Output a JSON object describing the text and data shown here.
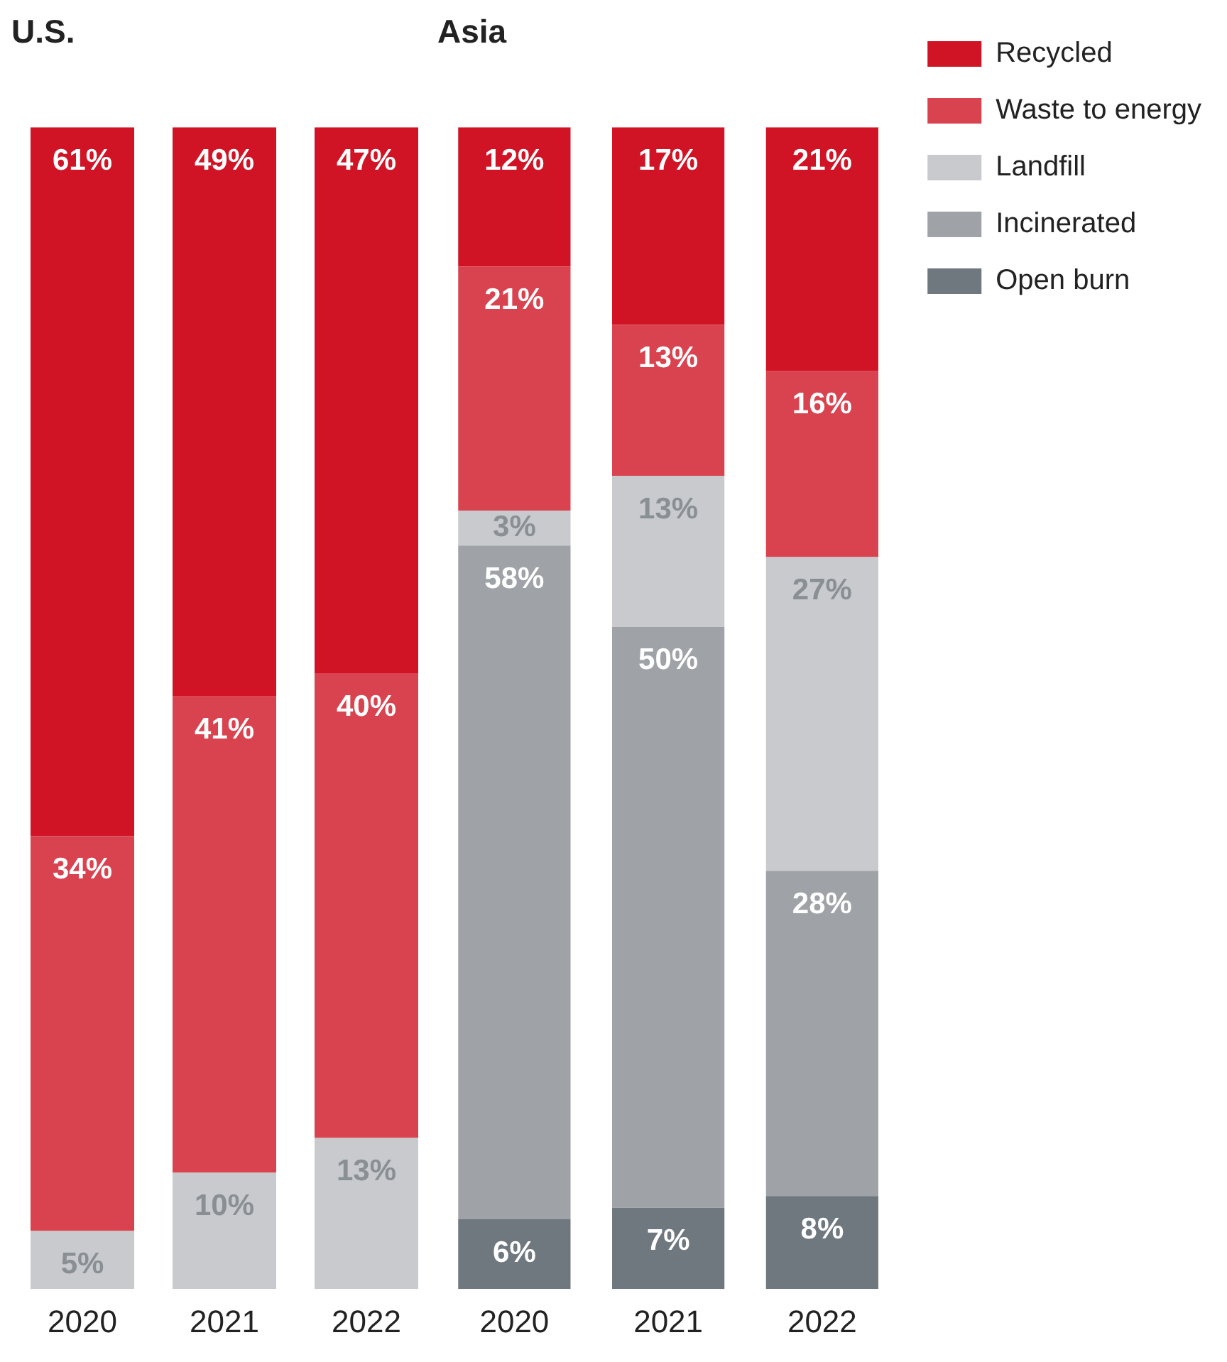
{
  "chart_data": [
    {
      "type": "bar",
      "title": "U.S.",
      "categories": [
        "2020",
        "2021",
        "2022"
      ],
      "stacked": true,
      "legend": false,
      "series": [
        {
          "color": "#c8cacd",
          "values": [
            5,
            10,
            13
          ],
          "value_labels": [
            "5%",
            "10%",
            "13%"
          ]
        },
        {
          "color": "#d9434f",
          "values": [
            34,
            41,
            40
          ],
          "value_labels": [
            "34%",
            "41%",
            "40%"
          ]
        },
        {
          "color": "#d01325",
          "values": [
            61,
            49,
            47
          ],
          "value_labels": [
            "61%",
            "49%",
            "47%"
          ]
        }
      ]
    },
    {
      "type": "bar",
      "title": "Asia",
      "categories": [
        "2020",
        "2021",
        "2022"
      ],
      "stacked": true,
      "legend": "right",
      "series": [
        {
          "name": "Open burn",
          "color": "#6f777f",
          "values": [
            6,
            7,
            8
          ],
          "value_labels": [
            "6%",
            "7%",
            "8%"
          ]
        },
        {
          "name": "Incinerated",
          "color": "#9fa3a7",
          "values": [
            58,
            50,
            28
          ],
          "value_labels": [
            "58%",
            "50%",
            "28%"
          ]
        },
        {
          "name": "Landfill",
          "color": "#c8cacd",
          "values": [
            3,
            13,
            27
          ],
          "value_labels": [
            "3%",
            "13%",
            "27%"
          ]
        },
        {
          "name": "Waste to energy",
          "color": "#d9434f",
          "values": [
            21,
            13,
            16
          ],
          "value_labels": [
            "21%",
            "13%",
            "16%"
          ]
        },
        {
          "name": "Recycled",
          "color": "#d01325",
          "values": [
            12,
            17,
            21
          ],
          "value_labels": [
            "12%",
            "17%",
            "21%"
          ]
        }
      ]
    }
  ]
}
